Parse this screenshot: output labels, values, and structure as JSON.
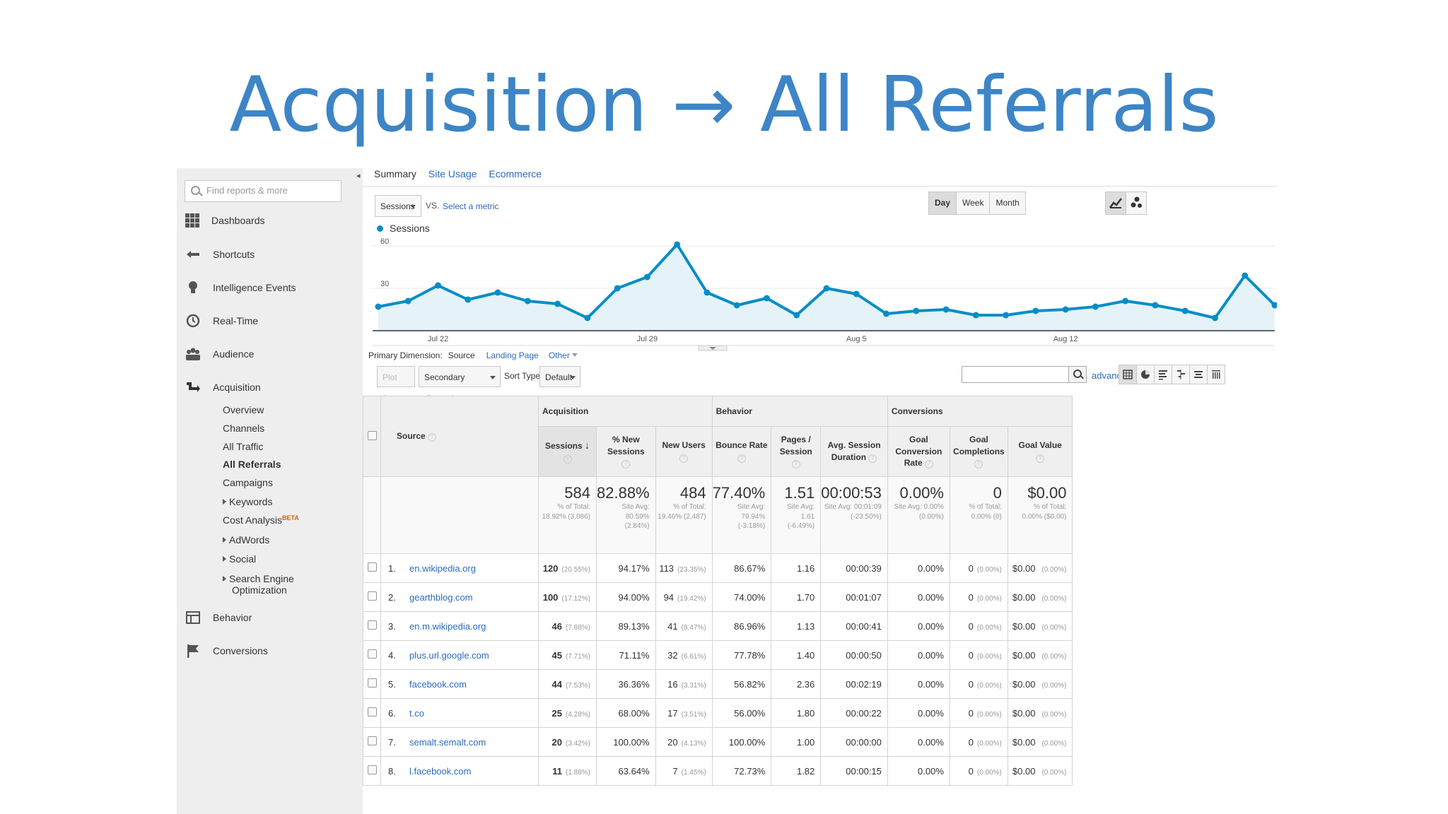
{
  "slide": {
    "title": "Acquisition → All Referrals"
  },
  "sidebar": {
    "search_placeholder": "Find reports & more",
    "items": [
      {
        "label": "Dashboards",
        "icon": "dashboards-icon"
      },
      {
        "label": "Shortcuts",
        "icon": "shortcuts-icon"
      },
      {
        "label": "Intelligence Events",
        "icon": "lightbulb-icon"
      },
      {
        "label": "Real-Time",
        "icon": "clock-icon"
      },
      {
        "label": "Audience",
        "icon": "people-icon"
      },
      {
        "label": "Acquisition",
        "icon": "acquisition-icon"
      },
      {
        "label": "Behavior",
        "icon": "behavior-icon"
      },
      {
        "label": "Conversions",
        "icon": "flag-icon"
      }
    ],
    "sub_items": [
      "Overview",
      "Channels",
      "All Traffic",
      "All Referrals",
      "Campaigns",
      "Keywords",
      "Cost Analysis",
      "AdWords",
      "Social",
      "Search Engine",
      "Optimization"
    ],
    "beta": "BETA"
  },
  "tabs": [
    "Summary",
    "Site Usage",
    "Ecommerce"
  ],
  "metric_select": "Sessions",
  "vs": "VS.",
  "select_metric": "Select a metric",
  "ranges": [
    "Day",
    "Week",
    "Month"
  ],
  "legend": "Sessions",
  "chart_data": {
    "type": "area",
    "series": [
      {
        "name": "Sessions",
        "values": [
          17,
          21,
          32,
          22,
          27,
          21,
          19,
          9,
          30,
          38,
          61,
          27,
          18,
          23,
          11,
          30,
          26,
          12,
          14,
          15,
          11,
          11,
          14,
          15,
          17,
          21,
          18,
          14,
          9,
          39,
          18
        ]
      }
    ],
    "x_tick_labels": [
      "Jul 22",
      "Jul 29",
      "Aug 5",
      "Aug 12"
    ],
    "y_tick_labels": [
      "60",
      "30"
    ],
    "ylim": [
      0,
      60
    ],
    "color": "#058dc7"
  },
  "primary_dimension": {
    "label": "Primary Dimension:",
    "active": "Source",
    "options": [
      "Landing Page",
      "Other"
    ]
  },
  "toolbar": {
    "plot_rows": "Plot Rows",
    "secondary": "Secondary dimension",
    "sort_label": "Sort Type:",
    "sort_value": "Default",
    "advanced": "advanced"
  },
  "table": {
    "groups": {
      "acquisition": "Acquisition",
      "behavior": "Behavior",
      "conversions": "Conversions"
    },
    "columns": {
      "source": "Source",
      "sessions": "Sessions",
      "new_sessions": "% New Sessions",
      "new_users": "New Users",
      "bounce": "Bounce Rate",
      "pages": "Pages / Session",
      "duration": "Avg. Session Duration",
      "goal_rate": "Goal Conversion Rate",
      "goal_comp": "Goal Completions",
      "goal_value": "Goal Value"
    },
    "totals": {
      "sessions": {
        "v": "584",
        "s1": "% of Total:",
        "s2": "18.92% (3,086)",
        "s3": ""
      },
      "new_sessions": {
        "v": "82.88%",
        "s1": "Site Avg:",
        "s2": "80.59%",
        "s3": "(2.84%)"
      },
      "new_users": {
        "v": "484",
        "s1": "% of Total:",
        "s2": "19.46% (2,487)",
        "s3": ""
      },
      "bounce": {
        "v": "77.40%",
        "s1": "Site Avg:",
        "s2": "79.94%",
        "s3": "(-3.18%)"
      },
      "pages": {
        "v": "1.51",
        "s1": "Site Avg:",
        "s2": "1.61",
        "s3": "(-6.49%)"
      },
      "duration": {
        "v": "00:00:53",
        "s1": "Site Avg: 00:01:09",
        "s2": "(-23.50%)",
        "s3": ""
      },
      "goal_rate": {
        "v": "0.00%",
        "s1": "Site Avg: 0.00%",
        "s2": "(0.00%)",
        "s3": ""
      },
      "goal_comp": {
        "v": "0",
        "s1": "% of Total:",
        "s2": "0.00% (0)",
        "s3": ""
      },
      "goal_value": {
        "v": "$0.00",
        "s1": "% of Total:",
        "s2": "0.00% ($0.00)",
        "s3": ""
      }
    },
    "rows": [
      {
        "n": "1.",
        "src": "en.wikipedia.org",
        "ses": "120",
        "sesp": "(20.55%)",
        "ns": "94.17%",
        "nu": "113",
        "nup": "(23.35%)",
        "br": "86.67%",
        "ps": "1.16",
        "dur": "00:00:39",
        "gr": "0.00%",
        "gc": "0",
        "gcp": "(0.00%)",
        "gv": "$0.00",
        "gvp": "(0.00%)"
      },
      {
        "n": "2.",
        "src": "gearthblog.com",
        "ses": "100",
        "sesp": "(17.12%)",
        "ns": "94.00%",
        "nu": "94",
        "nup": "(19.42%)",
        "br": "74.00%",
        "ps": "1.70",
        "dur": "00:01:07",
        "gr": "0.00%",
        "gc": "0",
        "gcp": "(0.00%)",
        "gv": "$0.00",
        "gvp": "(0.00%)"
      },
      {
        "n": "3.",
        "src": "en.m.wikipedia.org",
        "ses": "46",
        "sesp": "(7.88%)",
        "ns": "89.13%",
        "nu": "41",
        "nup": "(8.47%)",
        "br": "86.96%",
        "ps": "1.13",
        "dur": "00:00:41",
        "gr": "0.00%",
        "gc": "0",
        "gcp": "(0.00%)",
        "gv": "$0.00",
        "gvp": "(0.00%)"
      },
      {
        "n": "4.",
        "src": "plus.url.google.com",
        "ses": "45",
        "sesp": "(7.71%)",
        "ns": "71.11%",
        "nu": "32",
        "nup": "(6.61%)",
        "br": "77.78%",
        "ps": "1.40",
        "dur": "00:00:50",
        "gr": "0.00%",
        "gc": "0",
        "gcp": "(0.00%)",
        "gv": "$0.00",
        "gvp": "(0.00%)"
      },
      {
        "n": "5.",
        "src": "facebook.com",
        "ses": "44",
        "sesp": "(7.53%)",
        "ns": "36.36%",
        "nu": "16",
        "nup": "(3.31%)",
        "br": "56.82%",
        "ps": "2.36",
        "dur": "00:02:19",
        "gr": "0.00%",
        "gc": "0",
        "gcp": "(0.00%)",
        "gv": "$0.00",
        "gvp": "(0.00%)"
      },
      {
        "n": "6.",
        "src": "t.co",
        "ses": "25",
        "sesp": "(4.28%)",
        "ns": "68.00%",
        "nu": "17",
        "nup": "(3.51%)",
        "br": "56.00%",
        "ps": "1.80",
        "dur": "00:00:22",
        "gr": "0.00%",
        "gc": "0",
        "gcp": "(0.00%)",
        "gv": "$0.00",
        "gvp": "(0.00%)"
      },
      {
        "n": "7.",
        "src": "semalt.semalt.com",
        "ses": "20",
        "sesp": "(3.42%)",
        "ns": "100.00%",
        "nu": "20",
        "nup": "(4.13%)",
        "br": "100.00%",
        "ps": "1.00",
        "dur": "00:00:00",
        "gr": "0.00%",
        "gc": "0",
        "gcp": "(0.00%)",
        "gv": "$0.00",
        "gvp": "(0.00%)"
      },
      {
        "n": "8.",
        "src": "l.facebook.com",
        "ses": "11",
        "sesp": "(1.88%)",
        "ns": "63.64%",
        "nu": "7",
        "nup": "(1.45%)",
        "br": "72.73%",
        "ps": "1.82",
        "dur": "00:00:15",
        "gr": "0.00%",
        "gc": "0",
        "gcp": "(0.00%)",
        "gv": "$0.00",
        "gvp": "(0.00%)"
      }
    ]
  }
}
